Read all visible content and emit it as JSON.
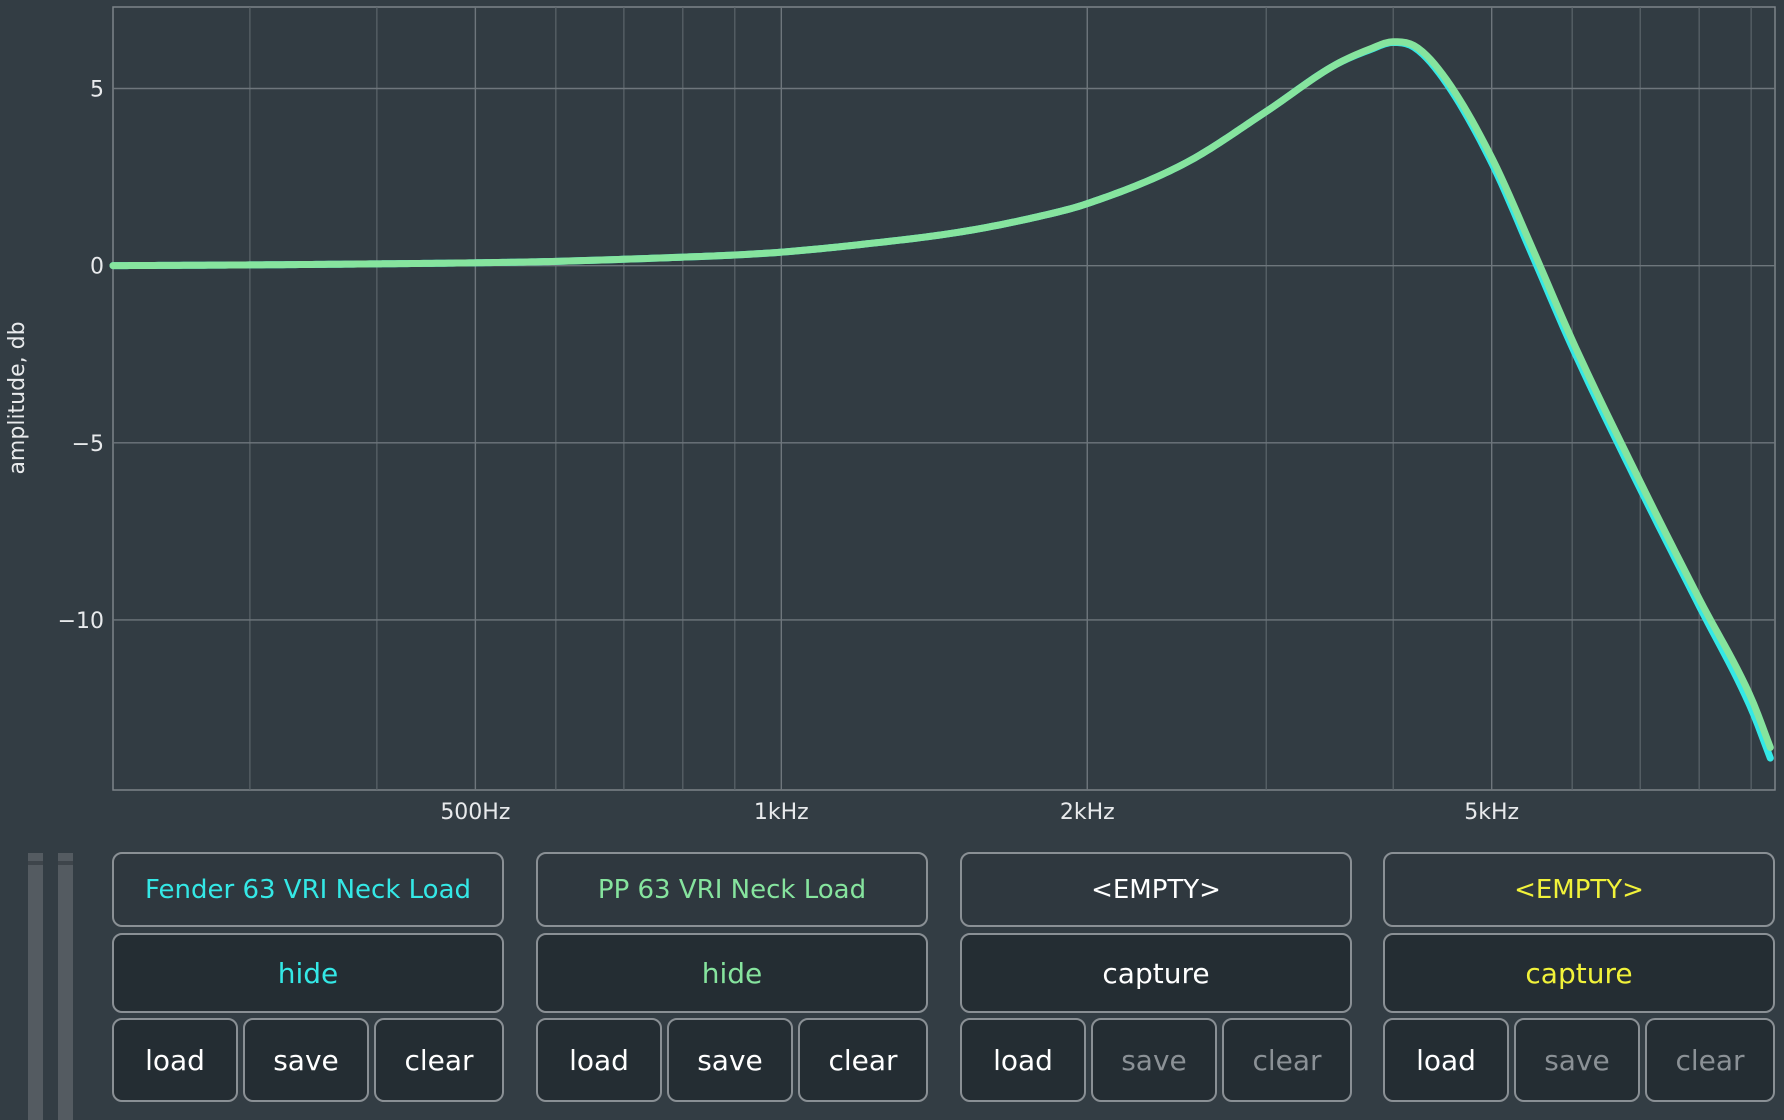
{
  "chart_data": {
    "type": "line",
    "xscale": "log",
    "xlim": [
      220,
      9500
    ],
    "ylim": [
      -14.8,
      7.3
    ],
    "ylabel": "amplitude, db",
    "xticks": [
      {
        "value": 500,
        "label": "500Hz"
      },
      {
        "value": 1000,
        "label": "1kHz"
      },
      {
        "value": 2000,
        "label": "2kHz"
      },
      {
        "value": 5000,
        "label": "5kHz"
      }
    ],
    "yticks": [
      {
        "value": 5,
        "label": "5"
      },
      {
        "value": 0,
        "label": "0"
      },
      {
        "value": -5,
        "label": "-5"
      },
      {
        "value": -10,
        "label": "-10"
      }
    ],
    "minor_x_gridlines": [
      300,
      400,
      600,
      700,
      800,
      900,
      3000,
      4000,
      6000,
      7000,
      8000,
      9000
    ],
    "grid": true,
    "series": [
      {
        "name": "Fender 63 VRI Neck Load",
        "color": "#34e8e6",
        "x": [
          220,
          300,
          400,
          500,
          600,
          700,
          800,
          900,
          1000,
          1200,
          1500,
          1800,
          2000,
          2500,
          3000,
          3500,
          3800,
          4000,
          4200,
          4500,
          5000,
          5500,
          6000,
          7000,
          8000,
          9000,
          9400
        ],
        "y": [
          0.0,
          0.02,
          0.05,
          0.08,
          0.12,
          0.18,
          0.24,
          0.3,
          0.38,
          0.6,
          0.95,
          1.4,
          1.75,
          2.9,
          4.35,
          5.65,
          6.1,
          6.3,
          6.15,
          5.2,
          2.9,
          0.2,
          -2.3,
          -6.3,
          -9.6,
          -12.5,
          -13.9
        ]
      },
      {
        "name": "PP 63 VRI Neck Load",
        "color": "#86e49e",
        "x": [
          220,
          300,
          400,
          500,
          600,
          700,
          800,
          900,
          1000,
          1200,
          1500,
          1800,
          2000,
          2500,
          3000,
          3500,
          3800,
          4000,
          4200,
          4500,
          5000,
          5500,
          6000,
          7000,
          8000,
          9000,
          9400
        ],
        "y": [
          0.0,
          0.02,
          0.05,
          0.08,
          0.12,
          0.18,
          0.24,
          0.3,
          0.38,
          0.6,
          0.95,
          1.4,
          1.75,
          2.9,
          4.35,
          5.65,
          6.12,
          6.32,
          6.2,
          5.3,
          3.05,
          0.4,
          -2.1,
          -6.1,
          -9.4,
          -12.2,
          -13.6
        ]
      }
    ]
  },
  "slots": [
    {
      "name": "Fender 63 VRI Neck Load",
      "name_color": "#34e8e6",
      "toggle": "hide",
      "toggle_color": "#34e8e6",
      "load": "load",
      "save": "save",
      "clear": "clear",
      "save_enabled": true,
      "clear_enabled": true
    },
    {
      "name": "PP 63 VRI Neck Load",
      "name_color": "#86e49e",
      "toggle": "hide",
      "toggle_color": "#86e49e",
      "load": "load",
      "save": "save",
      "clear": "clear",
      "save_enabled": true,
      "clear_enabled": true
    },
    {
      "name": "<EMPTY>",
      "name_color": "#ffffff",
      "toggle": "capture",
      "toggle_color": "#ffffff",
      "load": "load",
      "save": "save",
      "clear": "clear",
      "save_enabled": false,
      "clear_enabled": false
    },
    {
      "name": "<EMPTY>",
      "name_color": "#f1f23a",
      "toggle": "capture",
      "toggle_color": "#f1f23a",
      "load": "load",
      "save": "save",
      "clear": "clear",
      "save_enabled": false,
      "clear_enabled": false
    }
  ]
}
